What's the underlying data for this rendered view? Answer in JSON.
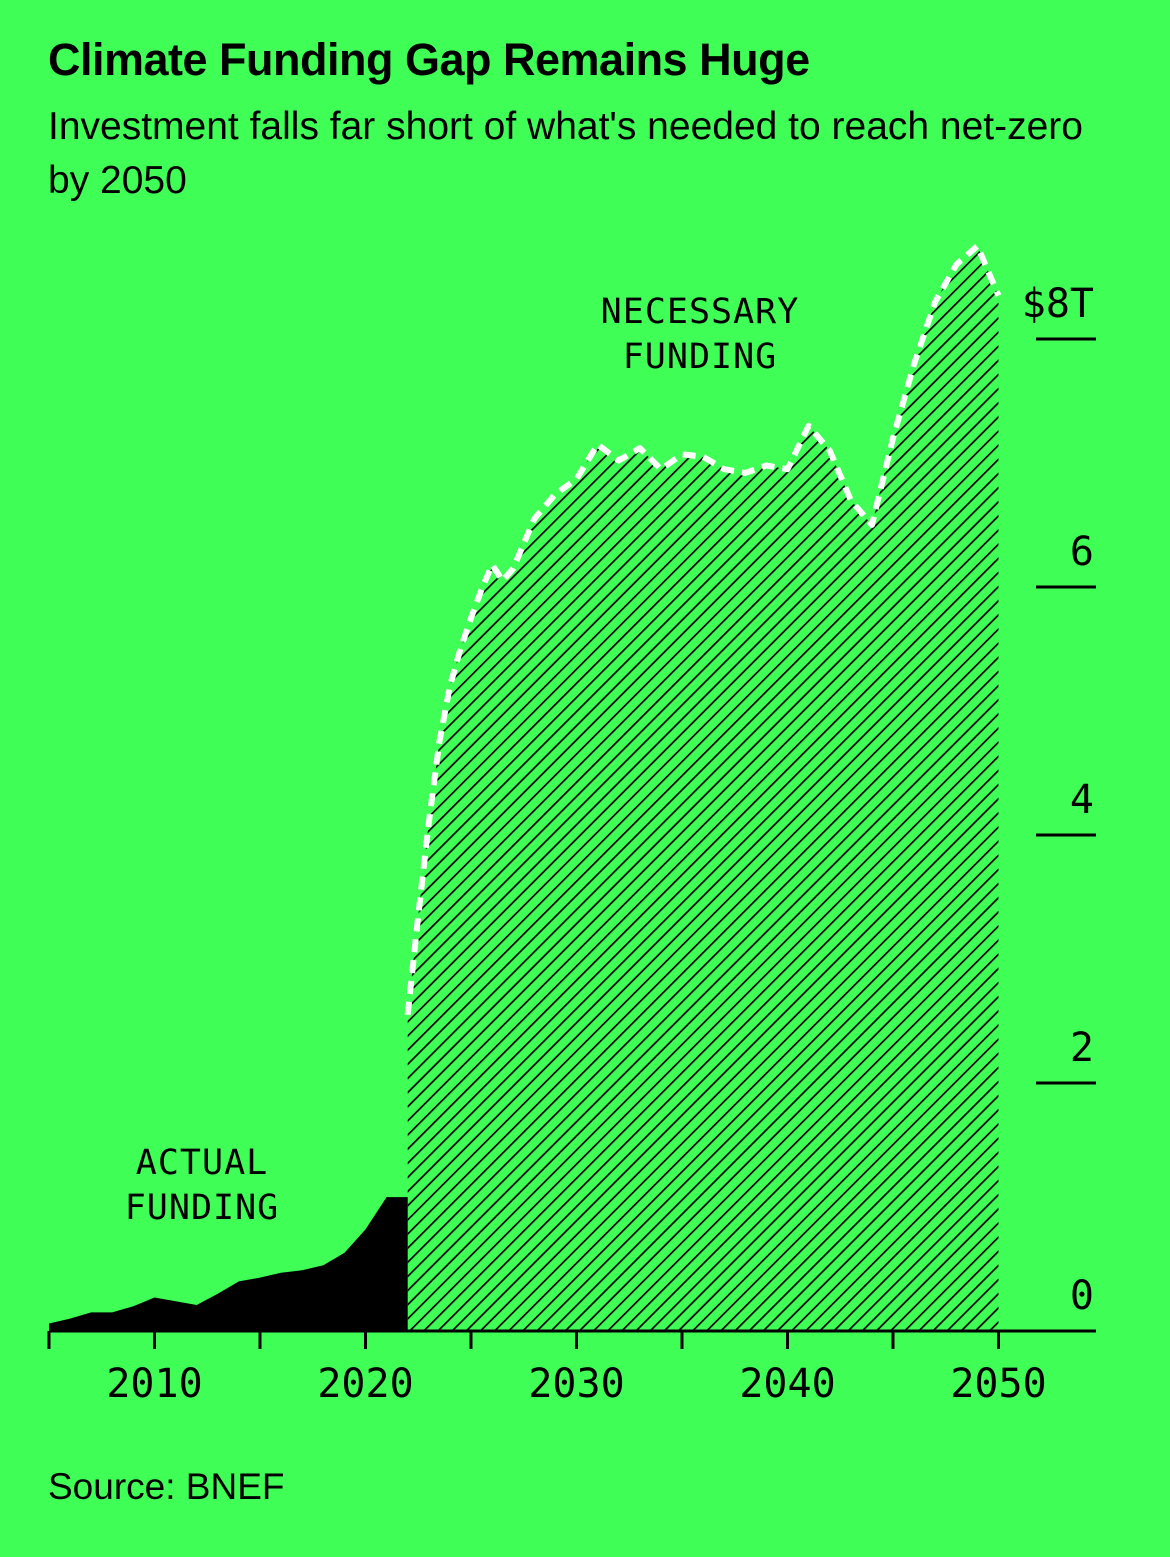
{
  "header": {
    "title": "Climate Funding Gap Remains Huge",
    "subtitle": "Investment falls far short of what's needed to reach net-zero by 2050"
  },
  "footer": {
    "source": "Source: BNEF"
  },
  "colors": {
    "background": "#3fff56",
    "actual_fill": "#000000",
    "necessary_hatch": "#000000",
    "necessary_line": "#ffffff"
  },
  "chart_data": {
    "type": "area",
    "title": "Climate Funding Gap Remains Huge",
    "subtitle": "Investment falls far short of what's needed to reach net-zero by 2050",
    "xlabel": "",
    "ylabel": "",
    "xlim": [
      2005,
      2050
    ],
    "ylim": [
      0,
      8
    ],
    "x_ticks": [
      2010,
      2020,
      2030,
      2040,
      2050
    ],
    "x_tick_labels": [
      "2010",
      "2020",
      "2030",
      "2040",
      "2050"
    ],
    "y_ticks": [
      0,
      2,
      4,
      6,
      8
    ],
    "y_tick_labels": [
      "0",
      "2",
      "4",
      "6",
      "$8T"
    ],
    "y_axis_side": "right",
    "grid": false,
    "series": [
      {
        "name": "ACTUAL\nFUNDING",
        "label_lines": [
          "ACTUAL",
          "FUNDING"
        ],
        "style": "solid fill",
        "x": [
          2005,
          2006,
          2007,
          2008,
          2009,
          2010,
          2011,
          2012,
          2013,
          2014,
          2015,
          2016,
          2017,
          2018,
          2019,
          2020,
          2021,
          2022
        ],
        "y": [
          0.06,
          0.1,
          0.15,
          0.15,
          0.2,
          0.27,
          0.24,
          0.21,
          0.3,
          0.4,
          0.43,
          0.47,
          0.49,
          0.53,
          0.63,
          0.82,
          1.08,
          1.08
        ]
      },
      {
        "name": "NECESSARY\nFUNDING",
        "label_lines": [
          "NECESSARY",
          "FUNDING"
        ],
        "style": "hatched fill with white dashed outline",
        "x": [
          2022,
          2022.5,
          2023,
          2023.5,
          2024,
          2024.5,
          2025,
          2025.5,
          2026,
          2026.5,
          2027,
          2027.5,
          2028,
          2029,
          2030,
          2031,
          2032,
          2033,
          2034,
          2035,
          2036,
          2037,
          2038,
          2039,
          2040,
          2041,
          2042,
          2043,
          2044,
          2045,
          2046,
          2047,
          2048,
          2049,
          2050
        ],
        "y": [
          2.55,
          3.35,
          4.1,
          4.75,
          5.2,
          5.5,
          5.75,
          5.98,
          6.18,
          6.05,
          6.15,
          6.35,
          6.55,
          6.75,
          6.87,
          7.15,
          7.02,
          7.12,
          6.95,
          7.07,
          7.05,
          6.95,
          6.92,
          6.98,
          6.95,
          7.3,
          7.1,
          6.7,
          6.5,
          7.2,
          7.8,
          8.3,
          8.6,
          8.75,
          8.35
        ]
      }
    ]
  }
}
